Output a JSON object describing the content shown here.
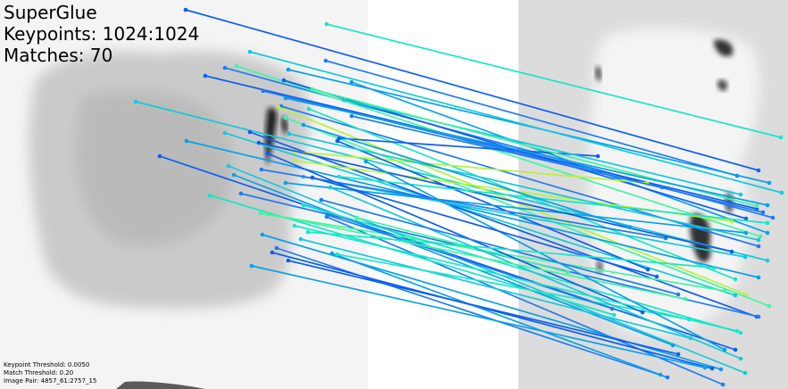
{
  "overlay": {
    "title": "SuperGlue",
    "keypoints": "Keypoints: 1024:1024",
    "matches": "Matches: 70"
  },
  "footer": {
    "keypoint_threshold": "Keypoint Threshold: 0.0050",
    "match_threshold": "Match Threshold: 0.20",
    "image_pair": "Image Pair: 4857_61:2757_15"
  },
  "colors": {
    "canvas": "#ffffff",
    "left_image_bg": "#f2f2f2",
    "right_image_bg": "#d9d9d9",
    "blot_dark": "#8d8d8d",
    "match_palette": [
      "#0b5ff0",
      "#1f7cf2",
      "#08a0ea",
      "#13c9dc",
      "#16e6c8",
      "#3ff5a2",
      "#b7f23e"
    ]
  }
}
